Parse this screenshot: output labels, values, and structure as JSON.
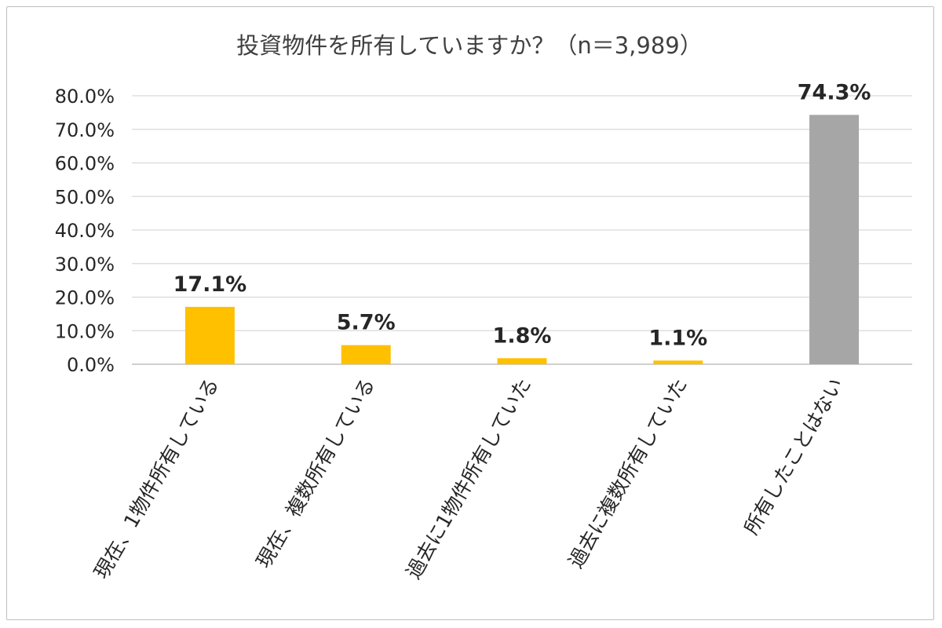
{
  "chart_data": {
    "type": "bar",
    "title": "投資物件を所有していますか？（n＝3,989）",
    "categories": [
      "現在、1物件所有している",
      "現在、複数所有している",
      "過去に1物件所有していた",
      "過去に複数所有していた",
      "所有したことはない"
    ],
    "values": [
      17.1,
      5.7,
      1.8,
      1.1,
      74.3
    ],
    "data_labels": [
      "17.1%",
      "5.7%",
      "1.8%",
      "1.1%",
      "74.3%"
    ],
    "colors": [
      "#FFC000",
      "#FFC000",
      "#FFC000",
      "#FFC000",
      "#A6A6A6"
    ],
    "ylim": [
      0,
      80
    ],
    "yticks": [
      0,
      10,
      20,
      30,
      40,
      50,
      60,
      70,
      80
    ],
    "ytick_labels": [
      "0.0%",
      "10.0%",
      "20.0%",
      "30.0%",
      "40.0%",
      "50.0%",
      "60.0%",
      "70.0%",
      "80.0%"
    ],
    "grid": true,
    "legend": "none",
    "xlabel": "",
    "ylabel": ""
  }
}
